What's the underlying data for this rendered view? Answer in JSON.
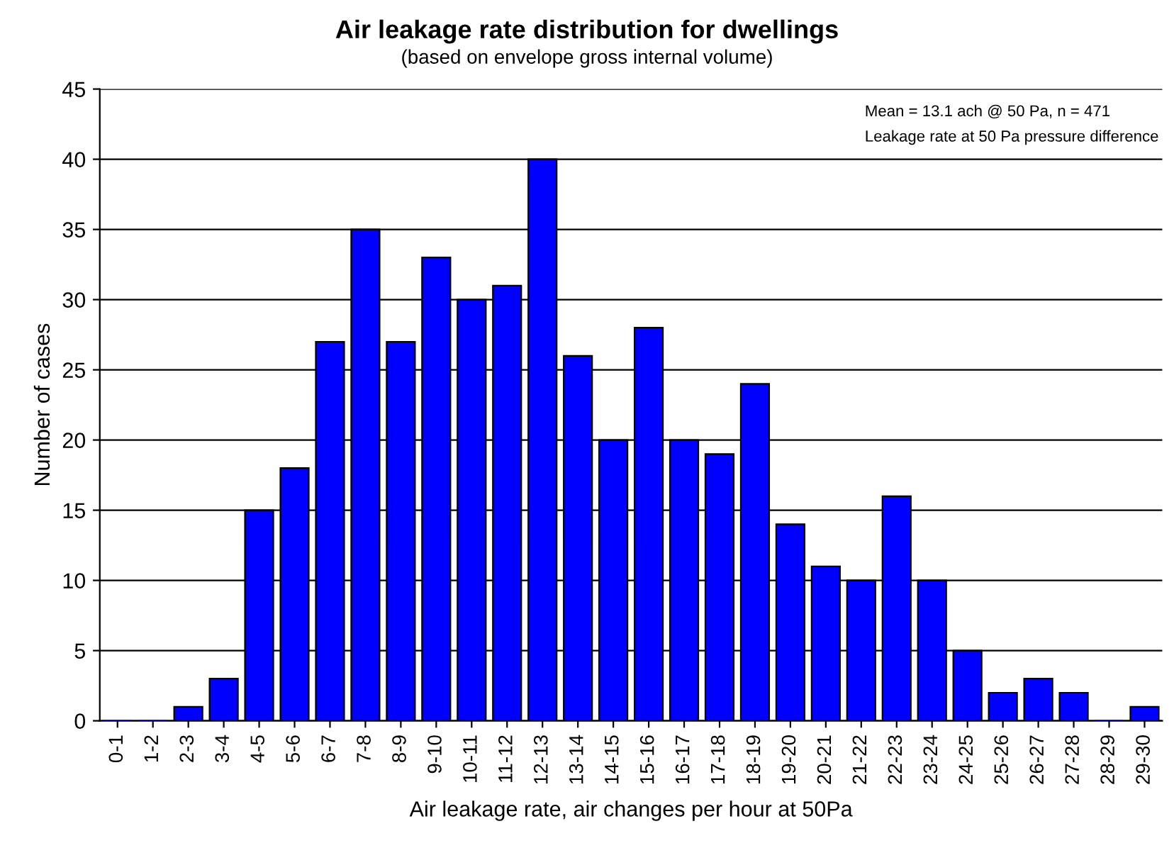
{
  "chart_data": {
    "type": "bar",
    "title": "Air leakage rate distribution for dwellings",
    "subtitle": "(based on envelope gross internal volume)",
    "xlabel": "Air leakage rate, air changes per hour at 50Pa",
    "ylabel": "Number of cases",
    "categories": [
      "0-1",
      "1-2",
      "2-3",
      "3-4",
      "4-5",
      "5-6",
      "6-7",
      "7-8",
      "8-9",
      "9-10",
      "10-11",
      "11-12",
      "12-13",
      "13-14",
      "14-15",
      "15-16",
      "16-17",
      "17-18",
      "18-19",
      "19-20",
      "20-21",
      "21-22",
      "22-23",
      "23-24",
      "24-25",
      "25-26",
      "26-27",
      "27-28",
      "28-29",
      "29-30"
    ],
    "values": [
      0,
      0,
      1,
      3,
      15,
      18,
      27,
      35,
      27,
      33,
      30,
      31,
      40,
      26,
      20,
      28,
      20,
      19,
      24,
      14,
      11,
      10,
      16,
      10,
      5,
      2,
      3,
      2,
      0,
      1
    ],
    "color": "#0000ff",
    "ylim": [
      0,
      45
    ],
    "yticks": [
      0,
      5,
      10,
      15,
      20,
      25,
      30,
      35,
      40,
      45
    ],
    "grid": "y",
    "annotations": [
      "Mean = 13.1 ach @ 50 Pa, n = 471",
      "Leakage rate at 50 Pa pressure difference"
    ]
  }
}
